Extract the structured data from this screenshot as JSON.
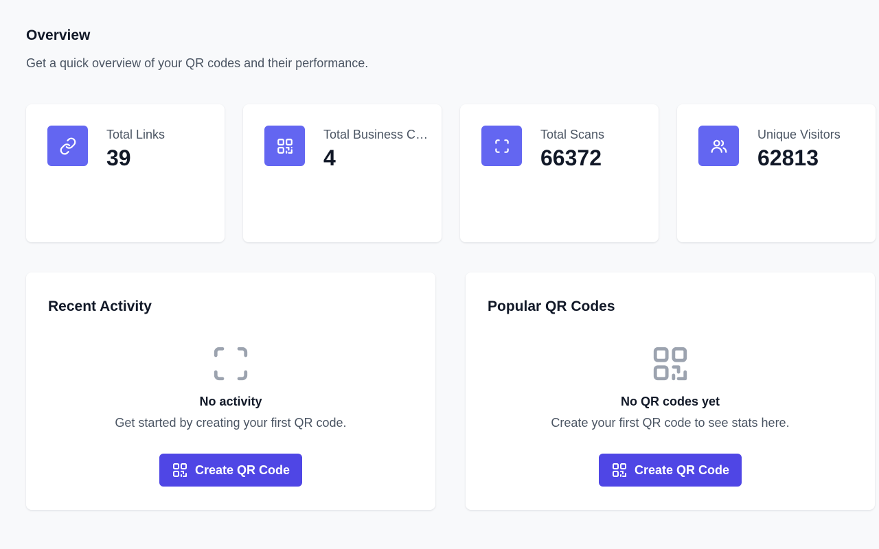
{
  "header": {
    "title": "Overview",
    "subtitle": "Get a quick overview of your QR codes and their performance."
  },
  "stats": [
    {
      "label": "Total Links",
      "value": "39",
      "icon": "link-icon"
    },
    {
      "label": "Total Business Cards",
      "value": "4",
      "icon": "qr-code-icon"
    },
    {
      "label": "Total Scans",
      "value": "66372",
      "icon": "scan-icon"
    },
    {
      "label": "Unique Visitors",
      "value": "62813",
      "icon": "users-icon"
    }
  ],
  "recent_activity": {
    "title": "Recent Activity",
    "empty_icon": "scan-icon",
    "empty_heading": "No activity",
    "empty_text": "Get started by creating your first QR code.",
    "button_label": "Create QR Code"
  },
  "popular_qr": {
    "title": "Popular QR Codes",
    "empty_icon": "qr-code-icon",
    "empty_heading": "No QR codes yet",
    "empty_text": "Create your first QR code to see stats here.",
    "button_label": "Create QR Code"
  },
  "colors": {
    "accent": "#6366f1",
    "button": "#4f46e5",
    "background": "#f8f9fb",
    "muted_icon": "#9ca3af"
  }
}
